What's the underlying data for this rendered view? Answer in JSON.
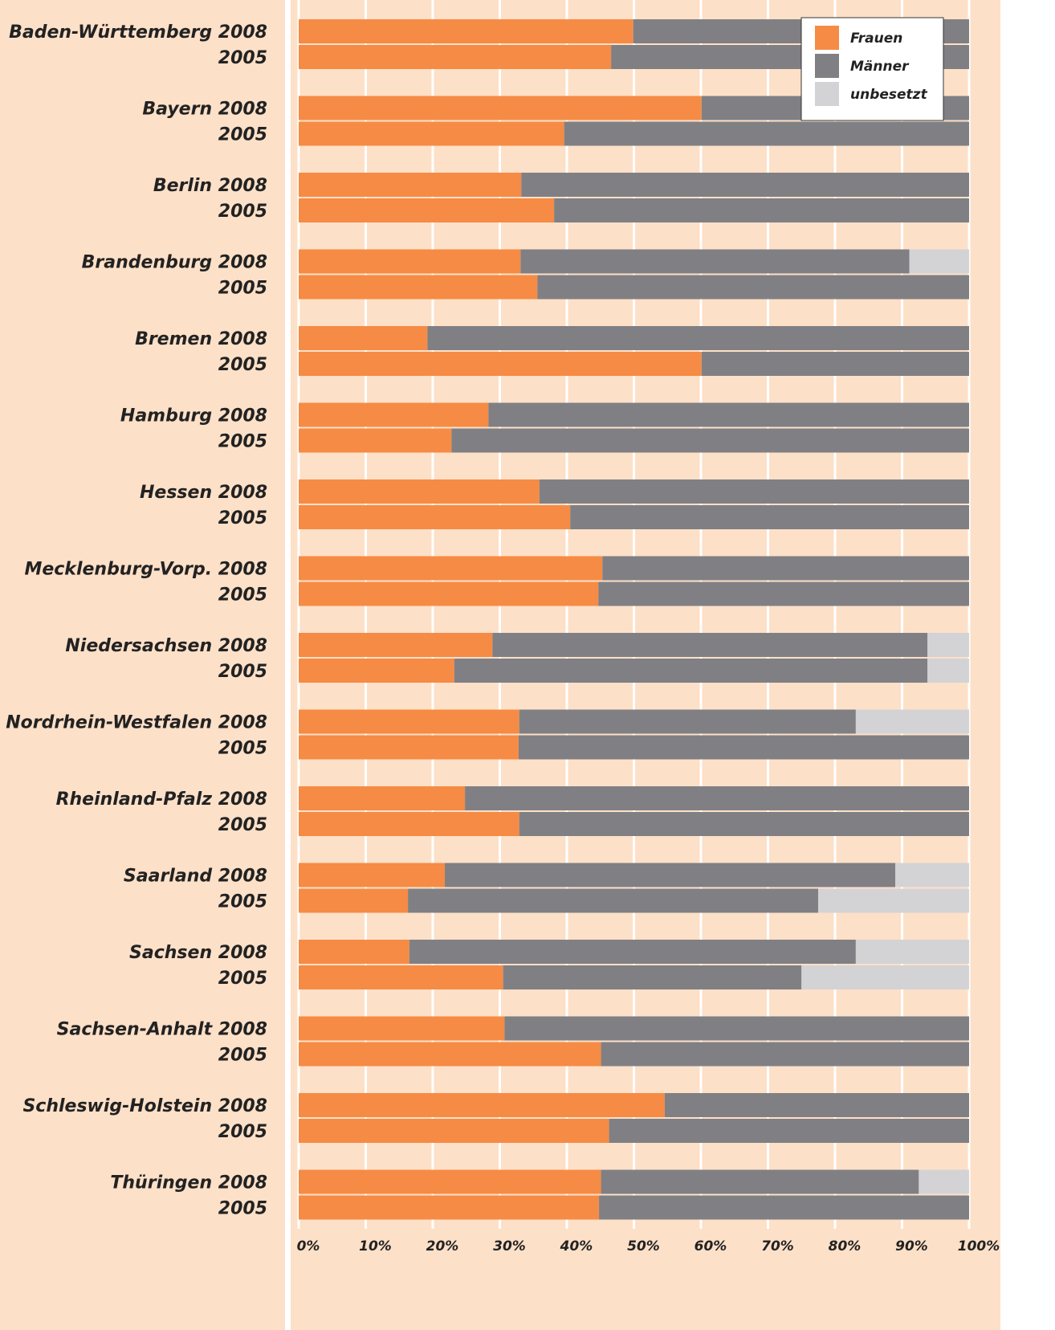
{
  "chart_data": {
    "type": "stacked_barh",
    "categories": [
      "Baden-Württemberg 2008",
      "2005",
      "Bayern 2008",
      "2005",
      "Berlin 2008",
      "2005",
      "Brandenburg 2008",
      "2005",
      "Bremen 2008",
      "2005",
      "Hamburg 2008",
      "2005",
      "Hessen 2008",
      "2005",
      "Mecklenburg-Vorp. 2008",
      "2005",
      "Niedersachsen 2008",
      "2005",
      "Nordrhein-Westfalen 2008",
      "2005",
      "Rheinland-Pfalz 2008",
      "2005",
      "Saarland 2008",
      "2005",
      "Sachsen 2008",
      "2005",
      "Sachsen-Anhalt 2008",
      "2005",
      "Schleswig-Holstein 2008",
      "2005",
      "Thüringen 2008",
      "2005"
    ],
    "series": [
      {
        "name": "Frauen",
        "color": "#f68b45",
        "values": [
          49.9,
          46.6,
          60.1,
          39.6,
          33.2,
          38.1,
          33.1,
          35.6,
          19.2,
          60.1,
          28.3,
          22.8,
          35.9,
          40.5,
          45.3,
          44.7,
          28.9,
          23.2,
          32.9,
          32.8,
          24.8,
          32.9,
          21.8,
          16.3,
          16.5,
          30.5,
          30.7,
          45.1,
          54.6,
          46.3,
          45.1,
          44.8
        ]
      },
      {
        "name": "Männer",
        "color": "#808084",
        "values": [
          50.1,
          53.4,
          39.9,
          60.4,
          66.8,
          61.9,
          58.0,
          64.4,
          80.8,
          39.9,
          71.7,
          77.2,
          64.1,
          59.5,
          54.7,
          55.3,
          64.9,
          70.6,
          50.2,
          67.2,
          75.2,
          67.1,
          67.2,
          61.2,
          66.6,
          44.5,
          69.3,
          54.9,
          45.4,
          53.7,
          47.4,
          55.2
        ]
      },
      {
        "name": "unbesetzt",
        "color": "#d3d3d5",
        "values": [
          0,
          0,
          0,
          0,
          0,
          0,
          8.9,
          0,
          0,
          0,
          0,
          0,
          0,
          0,
          0,
          0,
          6.2,
          6.2,
          16.9,
          0,
          0,
          0,
          11.0,
          22.5,
          16.9,
          25.0,
          0,
          0,
          0,
          0,
          7.5,
          0
        ]
      }
    ],
    "xlim": [
      0,
      100
    ],
    "xticks": [
      {
        "value": 0,
        "label": "0%"
      },
      {
        "value": 10,
        "label": "10%"
      },
      {
        "value": 20,
        "label": "20%"
      },
      {
        "value": 30,
        "label": "30%"
      },
      {
        "value": 40,
        "label": "40%"
      },
      {
        "value": 50,
        "label": "50%"
      },
      {
        "value": 60,
        "label": "60%"
      },
      {
        "value": 70,
        "label": "70%"
      },
      {
        "value": 80,
        "label": "80%"
      },
      {
        "value": 90,
        "label": "90%"
      },
      {
        "value": 100,
        "label": "100%"
      }
    ],
    "grid": true,
    "legend": "upper right"
  }
}
